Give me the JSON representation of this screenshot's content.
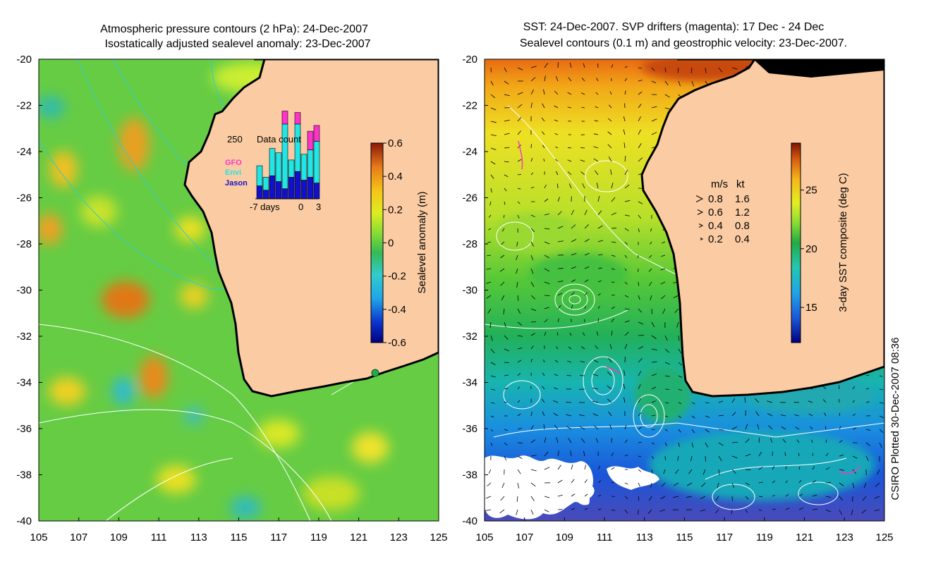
{
  "chart_data": [
    {
      "type": "heatmap",
      "title_line1": "Atmospheric pressure contours (2 hPa): 24-Dec-2007",
      "title_line2": "Isostatically adjusted sealevel anomaly: 23-Dec-2007",
      "x_ticks": [
        "105",
        "107",
        "109",
        "111",
        "113",
        "115",
        "117",
        "119",
        "121",
        "123",
        "125"
      ],
      "y_ticks": [
        "-20",
        "-22",
        "-24",
        "-26",
        "-28",
        "-30",
        "-32",
        "-34",
        "-36",
        "-38",
        "-40"
      ],
      "xlim": [
        105,
        125
      ],
      "ylim": [
        -40,
        -20
      ],
      "colorbar": {
        "label": "Sealevel anomaly (m)",
        "range": [
          -0.6,
          0.6
        ],
        "ticks": [
          "0.6",
          "0.4",
          "0.2",
          "0",
          "-0.2",
          "-0.4",
          "-0.6"
        ]
      },
      "inset": {
        "title": "Data count",
        "max_label": "250",
        "x_labels": [
          "-7 days",
          "0",
          "3"
        ],
        "legend": [
          {
            "label": "GFO",
            "color": "#ff33cc"
          },
          {
            "label": "Envi",
            "color": "#22e5e5"
          },
          {
            "label": "Jason",
            "color": "#1111cc"
          }
        ],
        "bars": [
          {
            "jason": 45,
            "envi": 70,
            "gfo": 0
          },
          {
            "jason": 30,
            "envi": 45,
            "gfo": 0
          },
          {
            "jason": 80,
            "envi": 95,
            "gfo": 0
          },
          {
            "jason": 60,
            "envi": 100,
            "gfo": 0
          },
          {
            "jason": 35,
            "envi": 225,
            "gfo": 45
          },
          {
            "jason": 75,
            "envi": 60,
            "gfo": 0
          },
          {
            "jason": 95,
            "envi": 165,
            "gfo": 40
          },
          {
            "jason": 65,
            "envi": 90,
            "gfo": 0
          },
          {
            "jason": 75,
            "envi": 95,
            "gfo": 65
          },
          {
            "jason": 55,
            "envi": 145,
            "gfo": 55
          }
        ]
      }
    },
    {
      "type": "heatmap",
      "title_line1": "SST: 24-Dec-2007. SVP drifters (magenta): 17 Dec - 24 Dec",
      "title_line2": "Sealevel contours (0.1 m) and geostrophic velocity: 23-Dec-2007.",
      "x_ticks": [
        "105",
        "107",
        "109",
        "111",
        "113",
        "115",
        "117",
        "119",
        "121",
        "123",
        "125"
      ],
      "y_ticks": [
        "-20",
        "-22",
        "-24",
        "-26",
        "-28",
        "-30",
        "-32",
        "-34",
        "-36",
        "-38",
        "-40"
      ],
      "xlim": [
        105,
        125
      ],
      "ylim": [
        -40,
        -20
      ],
      "colorbar": {
        "label": "3-day SST composite (deg C)",
        "range": [
          12,
          29
        ],
        "ticks": [
          "25",
          "20",
          "15"
        ]
      },
      "velocity_key": {
        "header_ms": "m/s",
        "header_kt": "kt",
        "rows": [
          {
            "ms": "0.8",
            "kt": "1.6"
          },
          {
            "ms": "0.6",
            "kt": "1.2"
          },
          {
            "ms": "0.4",
            "kt": "0.8"
          },
          {
            "ms": "0.2",
            "kt": "0.4"
          }
        ]
      }
    }
  ],
  "credit": "CSIRO Plotted 30-Dec-2007 08:36",
  "colors": {
    "land": "#fbcca3",
    "coast": "#000000",
    "pressure_contour": "#33cccc",
    "sealevel_contour": "#ffffff",
    "cloud": "#ffffff",
    "drifter": "#ff33cc"
  }
}
